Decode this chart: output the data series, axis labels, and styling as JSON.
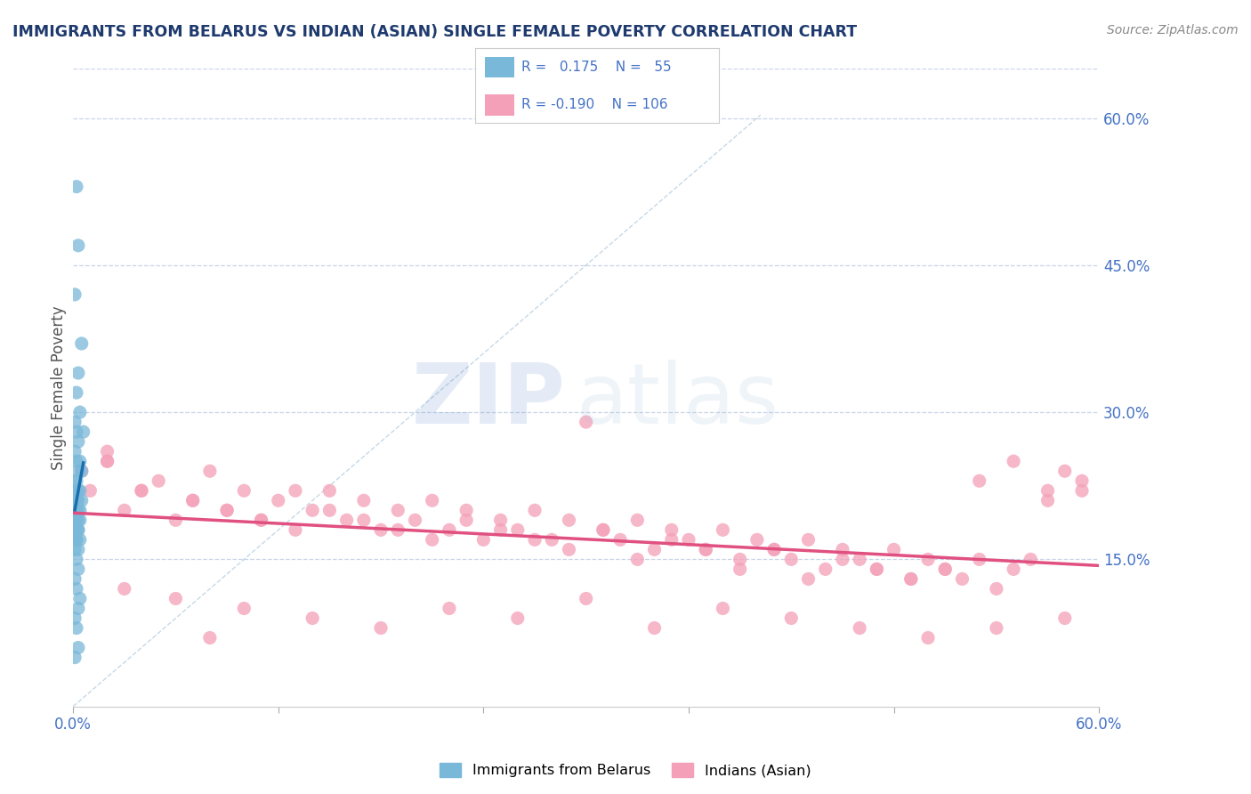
{
  "title": "IMMIGRANTS FROM BELARUS VS INDIAN (ASIAN) SINGLE FEMALE POVERTY CORRELATION CHART",
  "source": "Source: ZipAtlas.com",
  "ylabel_left": "Single Female Poverty",
  "x_min": 0.0,
  "x_max": 0.6,
  "y_min": 0.0,
  "y_max": 0.65,
  "y_ticks_right": [
    0.15,
    0.3,
    0.45,
    0.6
  ],
  "y_tick_labels_right": [
    "15.0%",
    "30.0%",
    "45.0%",
    "60.0%"
  ],
  "color_belarus": "#7ab8d9",
  "color_indians": "#f4a0b8",
  "color_trend_belarus": "#1a6faf",
  "color_trend_indians": "#e05080",
  "color_diagonal": "#b8cfe0",
  "label_belarus": "Immigrants from Belarus",
  "label_indians": "Indians (Asian)",
  "background_color": "#ffffff",
  "grid_color": "#c8d4e8",
  "title_color": "#1e3a6e",
  "axis_color": "#4472c4",
  "watermark_color_zip": "#4a7cc4",
  "watermark_color_atlas": "#9ab8d8",
  "belarus_x": [
    0.002,
    0.003,
    0.001,
    0.005,
    0.003,
    0.002,
    0.004,
    0.001,
    0.006,
    0.002,
    0.003,
    0.001,
    0.002,
    0.004,
    0.003,
    0.005,
    0.002,
    0.001,
    0.003,
    0.002,
    0.004,
    0.001,
    0.003,
    0.002,
    0.005,
    0.001,
    0.002,
    0.003,
    0.001,
    0.004,
    0.002,
    0.003,
    0.001,
    0.002,
    0.004,
    0.003,
    0.002,
    0.001,
    0.003,
    0.002,
    0.001,
    0.004,
    0.002,
    0.003,
    0.001,
    0.002,
    0.003,
    0.001,
    0.002,
    0.004,
    0.003,
    0.001,
    0.002,
    0.003,
    0.001
  ],
  "belarus_y": [
    0.53,
    0.47,
    0.42,
    0.37,
    0.34,
    0.32,
    0.3,
    0.29,
    0.28,
    0.28,
    0.27,
    0.26,
    0.25,
    0.25,
    0.24,
    0.24,
    0.23,
    0.23,
    0.22,
    0.22,
    0.22,
    0.22,
    0.21,
    0.21,
    0.21,
    0.21,
    0.2,
    0.2,
    0.2,
    0.2,
    0.2,
    0.19,
    0.19,
    0.19,
    0.19,
    0.18,
    0.18,
    0.18,
    0.18,
    0.17,
    0.17,
    0.17,
    0.17,
    0.16,
    0.16,
    0.15,
    0.14,
    0.13,
    0.12,
    0.11,
    0.1,
    0.09,
    0.08,
    0.06,
    0.05
  ],
  "indians_x": [
    0.005,
    0.01,
    0.02,
    0.03,
    0.04,
    0.05,
    0.06,
    0.07,
    0.08,
    0.09,
    0.1,
    0.11,
    0.12,
    0.13,
    0.14,
    0.15,
    0.16,
    0.17,
    0.18,
    0.19,
    0.2,
    0.21,
    0.22,
    0.23,
    0.24,
    0.25,
    0.26,
    0.27,
    0.28,
    0.29,
    0.3,
    0.31,
    0.32,
    0.33,
    0.34,
    0.35,
    0.36,
    0.37,
    0.38,
    0.39,
    0.4,
    0.41,
    0.42,
    0.43,
    0.44,
    0.45,
    0.46,
    0.47,
    0.48,
    0.49,
    0.5,
    0.51,
    0.52,
    0.53,
    0.54,
    0.55,
    0.56,
    0.57,
    0.58,
    0.59,
    0.02,
    0.04,
    0.07,
    0.09,
    0.11,
    0.13,
    0.15,
    0.17,
    0.19,
    0.21,
    0.23,
    0.25,
    0.27,
    0.29,
    0.31,
    0.33,
    0.35,
    0.37,
    0.39,
    0.41,
    0.43,
    0.45,
    0.47,
    0.49,
    0.51,
    0.53,
    0.55,
    0.57,
    0.59,
    0.03,
    0.06,
    0.1,
    0.14,
    0.18,
    0.22,
    0.26,
    0.3,
    0.34,
    0.38,
    0.42,
    0.46,
    0.5,
    0.54,
    0.58,
    0.02,
    0.08
  ],
  "indians_y": [
    0.24,
    0.22,
    0.25,
    0.2,
    0.22,
    0.23,
    0.19,
    0.21,
    0.24,
    0.2,
    0.22,
    0.19,
    0.21,
    0.18,
    0.2,
    0.22,
    0.19,
    0.21,
    0.18,
    0.2,
    0.19,
    0.21,
    0.18,
    0.2,
    0.17,
    0.19,
    0.18,
    0.2,
    0.17,
    0.19,
    0.29,
    0.18,
    0.17,
    0.19,
    0.16,
    0.18,
    0.17,
    0.16,
    0.18,
    0.15,
    0.17,
    0.16,
    0.15,
    0.17,
    0.14,
    0.16,
    0.15,
    0.14,
    0.16,
    0.13,
    0.15,
    0.14,
    0.13,
    0.15,
    0.12,
    0.14,
    0.15,
    0.22,
    0.24,
    0.23,
    0.26,
    0.22,
    0.21,
    0.2,
    0.19,
    0.22,
    0.2,
    0.19,
    0.18,
    0.17,
    0.19,
    0.18,
    0.17,
    0.16,
    0.18,
    0.15,
    0.17,
    0.16,
    0.14,
    0.16,
    0.13,
    0.15,
    0.14,
    0.13,
    0.14,
    0.23,
    0.25,
    0.21,
    0.22,
    0.12,
    0.11,
    0.1,
    0.09,
    0.08,
    0.1,
    0.09,
    0.11,
    0.08,
    0.1,
    0.09,
    0.08,
    0.07,
    0.08,
    0.09,
    0.25,
    0.07
  ]
}
